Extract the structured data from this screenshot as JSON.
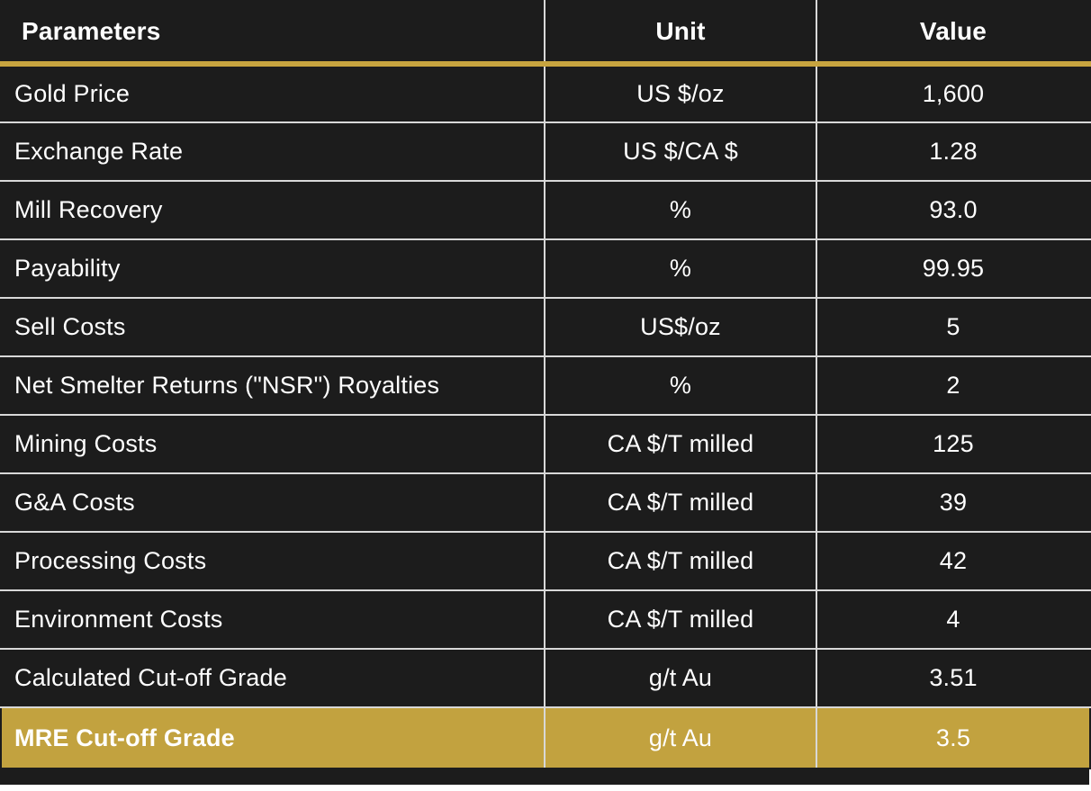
{
  "table": {
    "headers": [
      "Parameters",
      "Unit",
      "Value"
    ],
    "rows": [
      {
        "parameter": "Gold Price",
        "unit": "US $/oz",
        "value": "1,600"
      },
      {
        "parameter": "Exchange Rate",
        "unit": "US $/CA $",
        "value": "1.28"
      },
      {
        "parameter": "Mill Recovery",
        "unit": "%",
        "value": "93.0"
      },
      {
        "parameter": "Payability",
        "unit": "%",
        "value": "99.95"
      },
      {
        "parameter": "Sell Costs",
        "unit": "US$/oz",
        "value": "5"
      },
      {
        "parameter": "Net Smelter Returns (\"NSR\") Royalties",
        "unit": "%",
        "value": "2"
      },
      {
        "parameter": "Mining Costs",
        "unit": "CA $/T milled",
        "value": "125"
      },
      {
        "parameter": "G&A Costs",
        "unit": "CA $/T milled",
        "value": "39"
      },
      {
        "parameter": "Processing Costs",
        "unit": "CA $/T milled",
        "value": "42"
      },
      {
        "parameter": "Environment Costs",
        "unit": "CA $/T milled",
        "value": "4"
      },
      {
        "parameter": "Calculated Cut-off Grade",
        "unit": "g/t Au",
        "value": "3.51"
      },
      {
        "parameter": "MRE Cut-off Grade",
        "unit": "g/t Au",
        "value": "3.5"
      }
    ]
  },
  "colors": {
    "background": "#1c1c1c",
    "accent_gold": "#c7a43f",
    "highlight_row": "#c2a23f",
    "grid_lines": "#d8d8d8",
    "text": "#ffffff"
  }
}
